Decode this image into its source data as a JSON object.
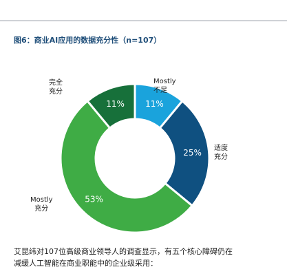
{
  "title": "图6：商业AI应用的数据充分性（n=107）",
  "caption": {
    "line1": "艾昆纬对107位高级商业领导人的调查显示，有五个核心障碍仍在",
    "line2": "减缓人工智能在商业职能中的企业级采用："
  },
  "chart_data": {
    "type": "pie",
    "donut": true,
    "title": "图6：商业AI应用的数据充分性（n=107）",
    "n": 107,
    "slices": [
      {
        "name": "Mostly 不足",
        "label_lines": [
          "Mostly",
          "不足"
        ],
        "value": 11,
        "value_label": "11%",
        "color": "#1aa3dc"
      },
      {
        "name": "适度 充分",
        "label_lines": [
          "适度",
          "充分"
        ],
        "value": 25,
        "value_label": "25%",
        "color": "#0f5080"
      },
      {
        "name": "Mostly 充分",
        "label_lines": [
          "Mostly",
          "充分"
        ],
        "value": 53,
        "value_label": "53%",
        "color": "#3fac45"
      },
      {
        "name": "完全 充分",
        "label_lines": [
          "完全",
          "充分"
        ],
        "value": 11,
        "value_label": "11%",
        "color": "#17703a"
      }
    ]
  }
}
